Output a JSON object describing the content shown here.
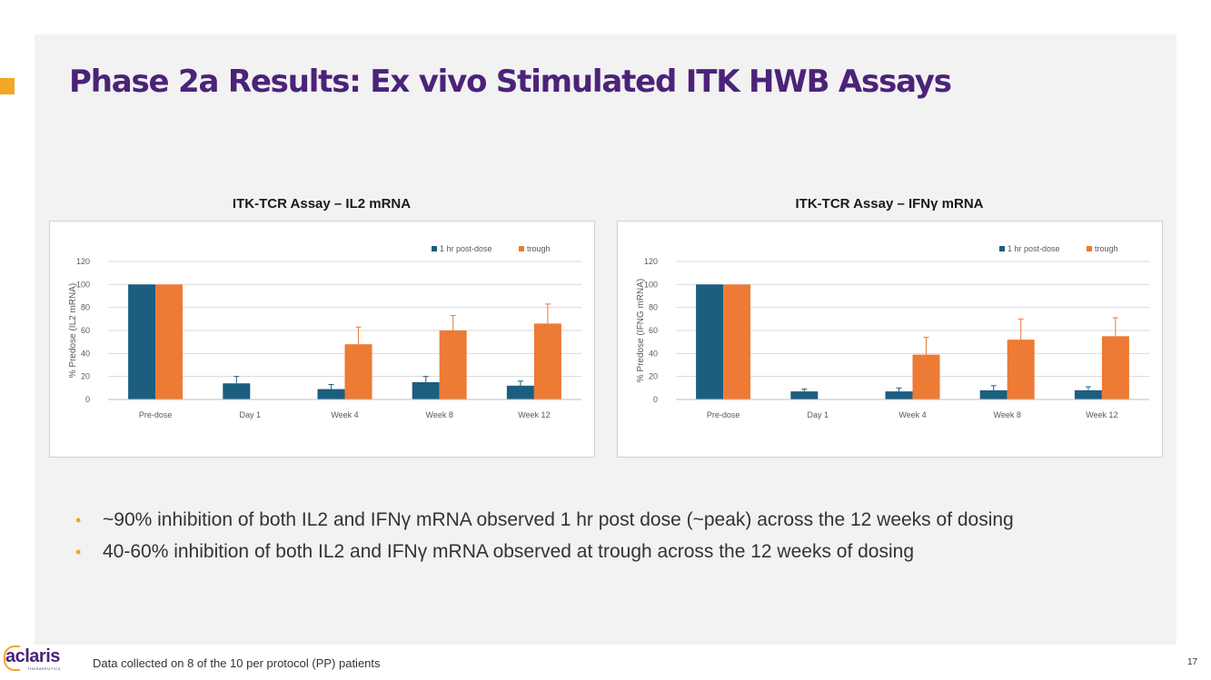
{
  "slide": {
    "title": "Phase 2a Results: Ex vivo Stimulated ITK HWB Assays",
    "page_number": "17",
    "footnote": "Data collected on 8 of the 10 per protocol (PP) patients",
    "logo_text": "aclaris",
    "logo_subtext": "THERAPEUTICS"
  },
  "colors": {
    "post_dose": "#1b5e80",
    "trough": "#ed7a35",
    "accent": "#f5a623",
    "title": "#4b2379"
  },
  "bullets": [
    "~90% inhibition of both IL2 and IFNγ mRNA observed 1 hr post dose (~peak) across the 12 weeks of dosing",
    "40-60% inhibition of both IL2 and IFNγ mRNA observed at trough across the 12 weeks of dosing"
  ],
  "chart_data": [
    {
      "type": "bar",
      "title": "ITK-TCR Assay – IL2 mRNA",
      "ylabel": "% Predose (IL2 mRNA)",
      "xlabel": "",
      "ylim": [
        0,
        120
      ],
      "yticks": [
        0,
        20,
        40,
        60,
        80,
        100,
        120
      ],
      "categories": [
        "Pre-dose",
        "Day 1",
        "Week 4",
        "Week 8",
        "Week 12"
      ],
      "legend_position": "top-right",
      "series": [
        {
          "name": "1 hr post-dose",
          "values": [
            100,
            14,
            9,
            15,
            12
          ],
          "errors": [
            0,
            6,
            4,
            5,
            4
          ]
        },
        {
          "name": "trough",
          "values": [
            100,
            null,
            48,
            60,
            66
          ],
          "errors": [
            0,
            null,
            15,
            13,
            17
          ]
        }
      ]
    },
    {
      "type": "bar",
      "title": "ITK-TCR Assay – IFNγ mRNA",
      "ylabel": "% Predose (IFNG mRNA)",
      "xlabel": "",
      "ylim": [
        0,
        120
      ],
      "yticks": [
        0,
        20,
        40,
        60,
        80,
        100,
        120
      ],
      "categories": [
        "Pre-dose",
        "Day 1",
        "Week 4",
        "Week 8",
        "Week 12"
      ],
      "legend_position": "top-right",
      "series": [
        {
          "name": "1 hr post-dose",
          "values": [
            100,
            7,
            7,
            8,
            8
          ],
          "errors": [
            0,
            2,
            3,
            4,
            3
          ]
        },
        {
          "name": "trough",
          "values": [
            100,
            null,
            39,
            52,
            55
          ],
          "errors": [
            0,
            null,
            15,
            18,
            16
          ]
        }
      ]
    }
  ]
}
